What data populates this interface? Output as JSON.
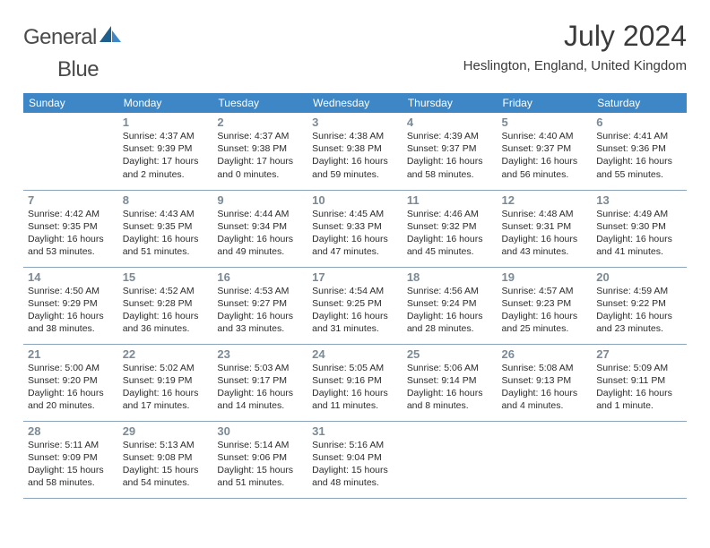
{
  "brand": {
    "part1": "General",
    "part2": "Blue",
    "logo_dark": "#1f5f8b",
    "logo_light": "#3d87c7"
  },
  "header": {
    "month_title": "July 2024",
    "location": "Heslington, England, United Kingdom"
  },
  "colors": {
    "header_bg": "#3d87c7",
    "header_text": "#ffffff",
    "daynum": "#7a8a96",
    "body_text": "#2b2b2b",
    "rule": "#8aa4bb"
  },
  "day_names": [
    "Sunday",
    "Monday",
    "Tuesday",
    "Wednesday",
    "Thursday",
    "Friday",
    "Saturday"
  ],
  "weeks": [
    [
      {
        "n": "",
        "l1": "",
        "l2": "",
        "l3": "",
        "l4": ""
      },
      {
        "n": "1",
        "l1": "Sunrise: 4:37 AM",
        "l2": "Sunset: 9:39 PM",
        "l3": "Daylight: 17 hours",
        "l4": "and 2 minutes."
      },
      {
        "n": "2",
        "l1": "Sunrise: 4:37 AM",
        "l2": "Sunset: 9:38 PM",
        "l3": "Daylight: 17 hours",
        "l4": "and 0 minutes."
      },
      {
        "n": "3",
        "l1": "Sunrise: 4:38 AM",
        "l2": "Sunset: 9:38 PM",
        "l3": "Daylight: 16 hours",
        "l4": "and 59 minutes."
      },
      {
        "n": "4",
        "l1": "Sunrise: 4:39 AM",
        "l2": "Sunset: 9:37 PM",
        "l3": "Daylight: 16 hours",
        "l4": "and 58 minutes."
      },
      {
        "n": "5",
        "l1": "Sunrise: 4:40 AM",
        "l2": "Sunset: 9:37 PM",
        "l3": "Daylight: 16 hours",
        "l4": "and 56 minutes."
      },
      {
        "n": "6",
        "l1": "Sunrise: 4:41 AM",
        "l2": "Sunset: 9:36 PM",
        "l3": "Daylight: 16 hours",
        "l4": "and 55 minutes."
      }
    ],
    [
      {
        "n": "7",
        "l1": "Sunrise: 4:42 AM",
        "l2": "Sunset: 9:35 PM",
        "l3": "Daylight: 16 hours",
        "l4": "and 53 minutes."
      },
      {
        "n": "8",
        "l1": "Sunrise: 4:43 AM",
        "l2": "Sunset: 9:35 PM",
        "l3": "Daylight: 16 hours",
        "l4": "and 51 minutes."
      },
      {
        "n": "9",
        "l1": "Sunrise: 4:44 AM",
        "l2": "Sunset: 9:34 PM",
        "l3": "Daylight: 16 hours",
        "l4": "and 49 minutes."
      },
      {
        "n": "10",
        "l1": "Sunrise: 4:45 AM",
        "l2": "Sunset: 9:33 PM",
        "l3": "Daylight: 16 hours",
        "l4": "and 47 minutes."
      },
      {
        "n": "11",
        "l1": "Sunrise: 4:46 AM",
        "l2": "Sunset: 9:32 PM",
        "l3": "Daylight: 16 hours",
        "l4": "and 45 minutes."
      },
      {
        "n": "12",
        "l1": "Sunrise: 4:48 AM",
        "l2": "Sunset: 9:31 PM",
        "l3": "Daylight: 16 hours",
        "l4": "and 43 minutes."
      },
      {
        "n": "13",
        "l1": "Sunrise: 4:49 AM",
        "l2": "Sunset: 9:30 PM",
        "l3": "Daylight: 16 hours",
        "l4": "and 41 minutes."
      }
    ],
    [
      {
        "n": "14",
        "l1": "Sunrise: 4:50 AM",
        "l2": "Sunset: 9:29 PM",
        "l3": "Daylight: 16 hours",
        "l4": "and 38 minutes."
      },
      {
        "n": "15",
        "l1": "Sunrise: 4:52 AM",
        "l2": "Sunset: 9:28 PM",
        "l3": "Daylight: 16 hours",
        "l4": "and 36 minutes."
      },
      {
        "n": "16",
        "l1": "Sunrise: 4:53 AM",
        "l2": "Sunset: 9:27 PM",
        "l3": "Daylight: 16 hours",
        "l4": "and 33 minutes."
      },
      {
        "n": "17",
        "l1": "Sunrise: 4:54 AM",
        "l2": "Sunset: 9:25 PM",
        "l3": "Daylight: 16 hours",
        "l4": "and 31 minutes."
      },
      {
        "n": "18",
        "l1": "Sunrise: 4:56 AM",
        "l2": "Sunset: 9:24 PM",
        "l3": "Daylight: 16 hours",
        "l4": "and 28 minutes."
      },
      {
        "n": "19",
        "l1": "Sunrise: 4:57 AM",
        "l2": "Sunset: 9:23 PM",
        "l3": "Daylight: 16 hours",
        "l4": "and 25 minutes."
      },
      {
        "n": "20",
        "l1": "Sunrise: 4:59 AM",
        "l2": "Sunset: 9:22 PM",
        "l3": "Daylight: 16 hours",
        "l4": "and 23 minutes."
      }
    ],
    [
      {
        "n": "21",
        "l1": "Sunrise: 5:00 AM",
        "l2": "Sunset: 9:20 PM",
        "l3": "Daylight: 16 hours",
        "l4": "and 20 minutes."
      },
      {
        "n": "22",
        "l1": "Sunrise: 5:02 AM",
        "l2": "Sunset: 9:19 PM",
        "l3": "Daylight: 16 hours",
        "l4": "and 17 minutes."
      },
      {
        "n": "23",
        "l1": "Sunrise: 5:03 AM",
        "l2": "Sunset: 9:17 PM",
        "l3": "Daylight: 16 hours",
        "l4": "and 14 minutes."
      },
      {
        "n": "24",
        "l1": "Sunrise: 5:05 AM",
        "l2": "Sunset: 9:16 PM",
        "l3": "Daylight: 16 hours",
        "l4": "and 11 minutes."
      },
      {
        "n": "25",
        "l1": "Sunrise: 5:06 AM",
        "l2": "Sunset: 9:14 PM",
        "l3": "Daylight: 16 hours",
        "l4": "and 8 minutes."
      },
      {
        "n": "26",
        "l1": "Sunrise: 5:08 AM",
        "l2": "Sunset: 9:13 PM",
        "l3": "Daylight: 16 hours",
        "l4": "and 4 minutes."
      },
      {
        "n": "27",
        "l1": "Sunrise: 5:09 AM",
        "l2": "Sunset: 9:11 PM",
        "l3": "Daylight: 16 hours",
        "l4": "and 1 minute."
      }
    ],
    [
      {
        "n": "28",
        "l1": "Sunrise: 5:11 AM",
        "l2": "Sunset: 9:09 PM",
        "l3": "Daylight: 15 hours",
        "l4": "and 58 minutes."
      },
      {
        "n": "29",
        "l1": "Sunrise: 5:13 AM",
        "l2": "Sunset: 9:08 PM",
        "l3": "Daylight: 15 hours",
        "l4": "and 54 minutes."
      },
      {
        "n": "30",
        "l1": "Sunrise: 5:14 AM",
        "l2": "Sunset: 9:06 PM",
        "l3": "Daylight: 15 hours",
        "l4": "and 51 minutes."
      },
      {
        "n": "31",
        "l1": "Sunrise: 5:16 AM",
        "l2": "Sunset: 9:04 PM",
        "l3": "Daylight: 15 hours",
        "l4": "and 48 minutes."
      },
      {
        "n": "",
        "l1": "",
        "l2": "",
        "l3": "",
        "l4": ""
      },
      {
        "n": "",
        "l1": "",
        "l2": "",
        "l3": "",
        "l4": ""
      },
      {
        "n": "",
        "l1": "",
        "l2": "",
        "l3": "",
        "l4": ""
      }
    ]
  ]
}
